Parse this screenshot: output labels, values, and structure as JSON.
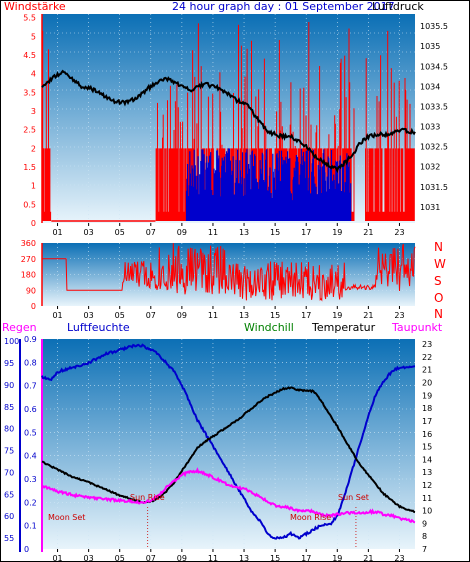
{
  "colors": {
    "wind": "#ff0000",
    "pressure": "#000000",
    "wind_avg": "#0000cc",
    "direction": "#ff0000",
    "humidity": "#0000cc",
    "windchill": "#008000",
    "temperature": "#000000",
    "dewpoint": "#ff00ff",
    "rain": "#cc0044",
    "plot_bg_top": "#0b6fb5",
    "plot_bg_bottom": "#e8f4fb"
  },
  "header": {
    "left_label": "Windstärke",
    "title": "24 hour graph day : 01 September 2017",
    "right_label": "Luftdruck"
  },
  "compass": {
    "n": "N",
    "w": "W",
    "s": "S",
    "o": "O"
  },
  "legend": {
    "regen": "Regen",
    "luftfeuchte": "Luftfeuchte",
    "windchill": "Windchill",
    "temperatur": "Temperatur",
    "taupunkt": "Taupunkt"
  },
  "events": {
    "moon_set": "Moon Set",
    "sun_rise": "Sun Rise",
    "moon_rise": "Moon Rise",
    "sun_set": "Sun Set"
  },
  "chart_data": [
    {
      "type": "line",
      "id": "wind_pressure",
      "x_ticks": [
        "01",
        "03",
        "05",
        "07",
        "09",
        "11",
        "13",
        "15",
        "17",
        "19",
        "21",
        "23"
      ],
      "y_left_ticks": [
        "0",
        "0.5",
        "1",
        "1.5",
        "2",
        "2.5",
        "3",
        "3.5",
        "4",
        "4.5",
        "5",
        "5.5"
      ],
      "y_left_range": [
        0,
        5.6
      ],
      "y_right_ticks": [
        "1031",
        "1031.5",
        "1032",
        "1032.5",
        "1033",
        "1033.5",
        "1034",
        "1034.5",
        "1035",
        "1035.5"
      ],
      "y_right_range": [
        1030.6,
        1035.8
      ],
      "series": [
        {
          "name": "Luftdruck",
          "axis": "right",
          "x": [
            0,
            0.5,
            1,
            1.5,
            2,
            2.5,
            3,
            3.5,
            4,
            4.5,
            5,
            5.5,
            6,
            6.5,
            7,
            7.5,
            8,
            8.5,
            9,
            9.5,
            10,
            10.5,
            11,
            11.5,
            12,
            12.5,
            13,
            13.5,
            14,
            14.5,
            15,
            15.5,
            16,
            16.5,
            17,
            17.5,
            18,
            18.5,
            19,
            19.5,
            20,
            20.5,
            21,
            21.5,
            22,
            22.5,
            23,
            23.5,
            24
          ],
          "y": [
            1033.95,
            1034.15,
            1034.3,
            1034.35,
            1034.15,
            1034.0,
            1033.95,
            1033.9,
            1033.75,
            1033.65,
            1033.6,
            1033.6,
            1033.7,
            1033.85,
            1034.0,
            1034.1,
            1034.2,
            1034.1,
            1034.0,
            1033.9,
            1034.0,
            1034.05,
            1034.0,
            1033.95,
            1033.8,
            1033.65,
            1033.6,
            1033.4,
            1033.1,
            1032.9,
            1032.8,
            1032.75,
            1032.75,
            1032.65,
            1032.5,
            1032.3,
            1032.15,
            1032.0,
            1031.95,
            1032.1,
            1032.3,
            1032.6,
            1032.75,
            1032.8,
            1032.8,
            1032.85,
            1032.9,
            1032.9,
            1032.85
          ]
        }
      ]
    },
    {
      "type": "line",
      "id": "wind_direction",
      "x_ticks": [
        "01",
        "03",
        "05",
        "07",
        "09",
        "11",
        "13",
        "15",
        "17",
        "19",
        "21",
        "23"
      ],
      "y_ticks": [
        "0",
        "90",
        "180",
        "270",
        "360"
      ],
      "y_range": [
        0,
        360
      ]
    },
    {
      "type": "line",
      "id": "weather",
      "x_ticks": [
        "01",
        "03",
        "05",
        "07",
        "09",
        "11",
        "13",
        "15",
        "17",
        "19",
        "21",
        "23"
      ],
      "y_rain_ticks": [
        "0",
        "0.1",
        "0.2",
        "0.3",
        "0.4",
        "0.5",
        "0.6",
        "0.7",
        "0.8",
        "0.9"
      ],
      "y_rain_range": [
        0,
        0.9
      ],
      "y_humidity_ticks": [
        "55",
        "60",
        "65",
        "70",
        "75",
        "80",
        "85",
        "90",
        "95",
        "100"
      ],
      "y_humidity_range": [
        52.5,
        100.5
      ],
      "y_temp_ticks": [
        "7",
        "8",
        "9",
        "10",
        "11",
        "12",
        "13",
        "14",
        "15",
        "16",
        "17",
        "18",
        "19",
        "20",
        "21",
        "22",
        "23"
      ],
      "y_temp_range": [
        7,
        23.4
      ],
      "series": [
        {
          "name": "Luftfeuchte",
          "axis": "humidity",
          "x": [
            0,
            0.5,
            1,
            2,
            3,
            4,
            5,
            6,
            6.5,
            7,
            7.5,
            8,
            8.5,
            9,
            9.5,
            10,
            10.5,
            11,
            11.5,
            12,
            12.5,
            13,
            13.5,
            14,
            14.5,
            15,
            15.5,
            16,
            16.5,
            17,
            17.5,
            18,
            18.5,
            19,
            19.5,
            20,
            20.5,
            21,
            21.5,
            22,
            22.5,
            23,
            24
          ],
          "y": [
            92,
            91,
            93,
            94,
            95,
            97,
            98,
            99,
            99,
            98,
            97,
            95,
            93,
            90,
            86,
            82,
            79,
            76,
            73,
            70,
            67,
            64,
            61,
            59,
            56,
            55,
            55,
            56,
            55,
            56,
            57,
            58,
            58,
            60,
            65,
            71,
            77,
            83,
            88,
            91,
            93,
            94,
            94
          ]
        },
        {
          "name": "Temperatur",
          "axis": "temp",
          "x": [
            0,
            1,
            2,
            3,
            4,
            5,
            6,
            6.5,
            7,
            7.5,
            8,
            8.5,
            9,
            9.5,
            10,
            10.5,
            11,
            11.5,
            12,
            12.5,
            13,
            13.5,
            14,
            14.5,
            15,
            15.5,
            16,
            16.5,
            17,
            17.5,
            18,
            18.5,
            19,
            19.5,
            20,
            20.5,
            21,
            21.5,
            22,
            22.5,
            23,
            24
          ],
          "y": [
            13.8,
            13.2,
            12.6,
            12.2,
            11.7,
            11.2,
            10.8,
            10.6,
            10.7,
            11.0,
            11.5,
            12.2,
            13.1,
            14.0,
            14.9,
            15.4,
            15.8,
            16.2,
            16.6,
            17.0,
            17.5,
            18.0,
            18.5,
            18.9,
            19.2,
            19.5,
            19.6,
            19.4,
            19.4,
            19.3,
            18.5,
            17.5,
            16.6,
            15.5,
            14.5,
            13.5,
            12.8,
            12.0,
            11.3,
            10.8,
            10.3,
            9.9
          ]
        },
        {
          "name": "Taupunkt",
          "axis": "temp",
          "x": [
            0,
            1,
            2,
            3,
            4,
            5,
            6,
            6.5,
            7,
            7.5,
            8,
            8.5,
            9,
            9.5,
            10,
            10.5,
            11,
            11.5,
            12,
            12.5,
            13,
            13.5,
            14,
            14.5,
            15,
            15.5,
            16,
            16.5,
            17,
            17.5,
            18,
            18.5,
            19,
            19.5,
            20,
            20.5,
            21,
            21.5,
            22,
            22.5,
            23,
            24
          ],
          "y": [
            11.9,
            11.5,
            11.2,
            11.0,
            10.9,
            10.8,
            10.7,
            10.6,
            10.8,
            11.2,
            11.8,
            12.3,
            12.8,
            13.0,
            13.1,
            12.9,
            12.6,
            12.3,
            12.0,
            11.8,
            11.7,
            11.4,
            11.1,
            10.7,
            10.4,
            10.3,
            10.2,
            10.0,
            10.0,
            9.9,
            9.7,
            9.6,
            9.7,
            9.8,
            9.8,
            9.8,
            9.9,
            9.9,
            9.7,
            9.6,
            9.4,
            9.1
          ]
        }
      ]
    }
  ]
}
